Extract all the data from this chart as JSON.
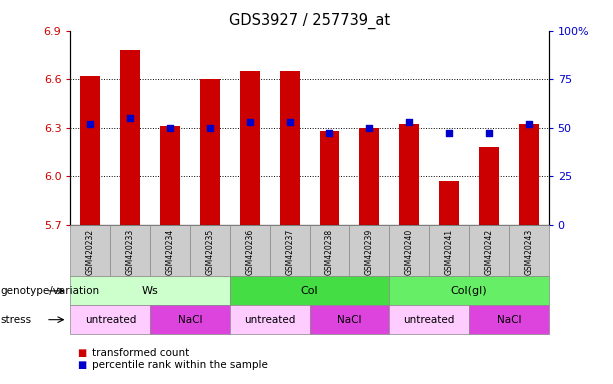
{
  "title": "GDS3927 / 257739_at",
  "samples": [
    "GSM420232",
    "GSM420233",
    "GSM420234",
    "GSM420235",
    "GSM420236",
    "GSM420237",
    "GSM420238",
    "GSM420239",
    "GSM420240",
    "GSM420241",
    "GSM420242",
    "GSM420243"
  ],
  "transformed_count": [
    6.62,
    6.78,
    6.31,
    6.6,
    6.65,
    6.65,
    6.28,
    6.3,
    6.32,
    5.97,
    6.18,
    6.32
  ],
  "percentile_rank": [
    52,
    55,
    50,
    50,
    53,
    53,
    47,
    50,
    53,
    47,
    47,
    52
  ],
  "ylim_left": [
    5.7,
    6.9
  ],
  "ylim_right": [
    0,
    100
  ],
  "yticks_left": [
    5.7,
    6.0,
    6.3,
    6.6,
    6.9
  ],
  "yticks_right": [
    0,
    25,
    50,
    75,
    100
  ],
  "ytick_labels_right": [
    "0",
    "25",
    "50",
    "75",
    "100%"
  ],
  "bar_color": "#CC0000",
  "dot_color": "#0000CC",
  "bar_width": 0.5,
  "base_value": 5.7,
  "groups": [
    {
      "label": "Ws",
      "start": 0,
      "end": 4,
      "color": "#ccffcc"
    },
    {
      "label": "Col",
      "start": 4,
      "end": 8,
      "color": "#44dd44"
    },
    {
      "label": "Col(gl)",
      "start": 8,
      "end": 12,
      "color": "#66ee66"
    }
  ],
  "stress_groups": [
    {
      "label": "untreated",
      "start": 0,
      "end": 2,
      "color": "#ffccff"
    },
    {
      "label": "NaCl",
      "start": 2,
      "end": 4,
      "color": "#dd44dd"
    },
    {
      "label": "untreated",
      "start": 4,
      "end": 6,
      "color": "#ffccff"
    },
    {
      "label": "NaCl",
      "start": 6,
      "end": 8,
      "color": "#dd44dd"
    },
    {
      "label": "untreated",
      "start": 8,
      "end": 10,
      "color": "#ffccff"
    },
    {
      "label": "NaCl",
      "start": 10,
      "end": 12,
      "color": "#dd44dd"
    }
  ],
  "legend_items": [
    {
      "label": "transformed count",
      "color": "#CC0000"
    },
    {
      "label": "percentile rank within the sample",
      "color": "#0000CC"
    }
  ],
  "tick_color_left": "#CC0000",
  "tick_color_right": "#0000CC",
  "genotype_label": "genotype/variation",
  "stress_label": "stress",
  "sample_bg": "#cccccc",
  "figure_bg": "#ffffff"
}
